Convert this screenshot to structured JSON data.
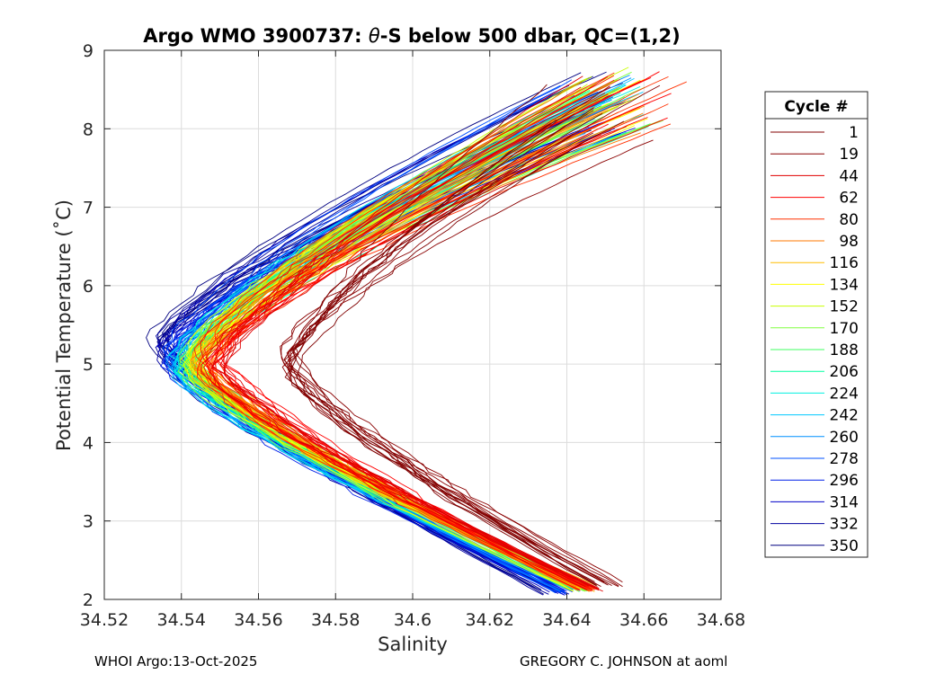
{
  "chart_data": {
    "type": "line",
    "title_prefix": "Argo WMO 3900737: ",
    "title_theta": "θ",
    "title_suffix": "-S below 500 dbar,  QC=(1,2)",
    "xlabel": "Salinity",
    "ylabel": "Potential Temperature (˚C)",
    "xlim": [
      34.52,
      34.68
    ],
    "ylim": [
      2,
      9
    ],
    "x_ticks": [
      34.52,
      34.54,
      34.56,
      34.58,
      34.6,
      34.62,
      34.64,
      34.66,
      34.68
    ],
    "x_tick_labels": [
      "34.52",
      "34.54",
      "34.56",
      "34.58",
      "34.6",
      "34.62",
      "34.64",
      "34.66",
      "34.68"
    ],
    "y_ticks": [
      2,
      3,
      4,
      5,
      6,
      7,
      8,
      9
    ],
    "y_tick_labels": [
      "2",
      "3",
      "4",
      "5",
      "6",
      "7",
      "8",
      "9"
    ],
    "grid": true,
    "legend_title": "Cycle #",
    "legend_position": "right",
    "series": [
      {
        "name": "1",
        "color": "#800000",
        "min_salinity": 34.568,
        "min_theta": 5.0,
        "top_salinity": 34.655,
        "top_theta": 8.6,
        "bottom_salinity": 34.65,
        "bottom_theta": 2.15
      },
      {
        "name": "19",
        "color": "#8a0000",
        "min_salinity": 34.567,
        "min_theta": 5.0,
        "top_salinity": 34.665,
        "top_theta": 8.65,
        "bottom_salinity": 34.652,
        "bottom_theta": 2.15
      },
      {
        "name": "44",
        "color": "#e00000",
        "min_salinity": 34.548,
        "min_theta": 5.0,
        "top_salinity": 34.66,
        "top_theta": 8.7,
        "bottom_salinity": 34.647,
        "bottom_theta": 2.1
      },
      {
        "name": "62",
        "color": "#ff0000",
        "min_salinity": 34.547,
        "min_theta": 5.0,
        "top_salinity": 34.67,
        "top_theta": 8.8,
        "bottom_salinity": 34.646,
        "bottom_theta": 2.1
      },
      {
        "name": "80",
        "color": "#ff3000",
        "min_salinity": 34.546,
        "min_theta": 5.0,
        "top_salinity": 34.672,
        "top_theta": 8.85,
        "bottom_salinity": 34.645,
        "bottom_theta": 2.1
      },
      {
        "name": "98",
        "color": "#ff7a00",
        "min_salinity": 34.545,
        "min_theta": 5.0,
        "top_salinity": 34.66,
        "top_theta": 8.7,
        "bottom_salinity": 34.645,
        "bottom_theta": 2.1
      },
      {
        "name": "116",
        "color": "#ffbe00",
        "min_salinity": 34.544,
        "min_theta": 5.0,
        "top_salinity": 34.66,
        "top_theta": 8.72,
        "bottom_salinity": 34.645,
        "bottom_theta": 2.1
      },
      {
        "name": "134",
        "color": "#ffff00",
        "min_salinity": 34.543,
        "min_theta": 5.0,
        "top_salinity": 34.662,
        "top_theta": 8.75,
        "bottom_salinity": 34.644,
        "bottom_theta": 2.1
      },
      {
        "name": "152",
        "color": "#c8ff00",
        "min_salinity": 34.543,
        "min_theta": 5.0,
        "top_salinity": 34.665,
        "top_theta": 8.8,
        "bottom_salinity": 34.644,
        "bottom_theta": 2.1
      },
      {
        "name": "170",
        "color": "#80ff40",
        "min_salinity": 34.542,
        "min_theta": 5.0,
        "top_salinity": 34.665,
        "top_theta": 8.8,
        "bottom_salinity": 34.644,
        "bottom_theta": 2.1
      },
      {
        "name": "188",
        "color": "#40ff60",
        "min_salinity": 34.542,
        "min_theta": 5.0,
        "top_salinity": 34.663,
        "top_theta": 8.78,
        "bottom_salinity": 34.644,
        "bottom_theta": 2.1
      },
      {
        "name": "206",
        "color": "#00ffa0",
        "min_salinity": 34.541,
        "min_theta": 5.0,
        "top_salinity": 34.662,
        "top_theta": 8.75,
        "bottom_salinity": 34.643,
        "bottom_theta": 2.1
      },
      {
        "name": "224",
        "color": "#00f0e0",
        "min_salinity": 34.54,
        "min_theta": 5.0,
        "top_salinity": 34.66,
        "top_theta": 8.72,
        "bottom_salinity": 34.643,
        "bottom_theta": 2.1
      },
      {
        "name": "242",
        "color": "#00c8ff",
        "min_salinity": 34.54,
        "min_theta": 5.0,
        "top_salinity": 34.66,
        "top_theta": 8.7,
        "bottom_salinity": 34.642,
        "bottom_theta": 2.1
      },
      {
        "name": "260",
        "color": "#0090ff",
        "min_salinity": 34.539,
        "min_theta": 5.0,
        "top_salinity": 34.658,
        "top_theta": 8.7,
        "bottom_salinity": 34.641,
        "bottom_theta": 2.1
      },
      {
        "name": "278",
        "color": "#0050ff",
        "min_salinity": 34.538,
        "min_theta": 5.1,
        "top_salinity": 34.658,
        "top_theta": 8.7,
        "bottom_salinity": 34.64,
        "bottom_theta": 2.05
      },
      {
        "name": "296",
        "color": "#0020e8",
        "min_salinity": 34.537,
        "min_theta": 5.1,
        "top_salinity": 34.658,
        "top_theta": 8.7,
        "bottom_salinity": 34.639,
        "bottom_theta": 2.05
      },
      {
        "name": "314",
        "color": "#0000c8",
        "min_salinity": 34.536,
        "min_theta": 5.1,
        "top_salinity": 34.66,
        "top_theta": 8.72,
        "bottom_salinity": 34.638,
        "bottom_theta": 2.05
      },
      {
        "name": "332",
        "color": "#0000a0",
        "min_salinity": 34.535,
        "min_theta": 5.2,
        "top_salinity": 34.66,
        "top_theta": 8.75,
        "bottom_salinity": 34.637,
        "bottom_theta": 2.05
      },
      {
        "name": "350",
        "color": "#000080",
        "min_salinity": 34.534,
        "min_theta": 5.2,
        "top_salinity": 34.66,
        "top_theta": 8.75,
        "bottom_salinity": 34.636,
        "bottom_theta": 2.05
      }
    ]
  },
  "footer": {
    "left": "WHOI Argo:13-Oct-2025",
    "right": "GREGORY C. JOHNSON at aoml"
  }
}
